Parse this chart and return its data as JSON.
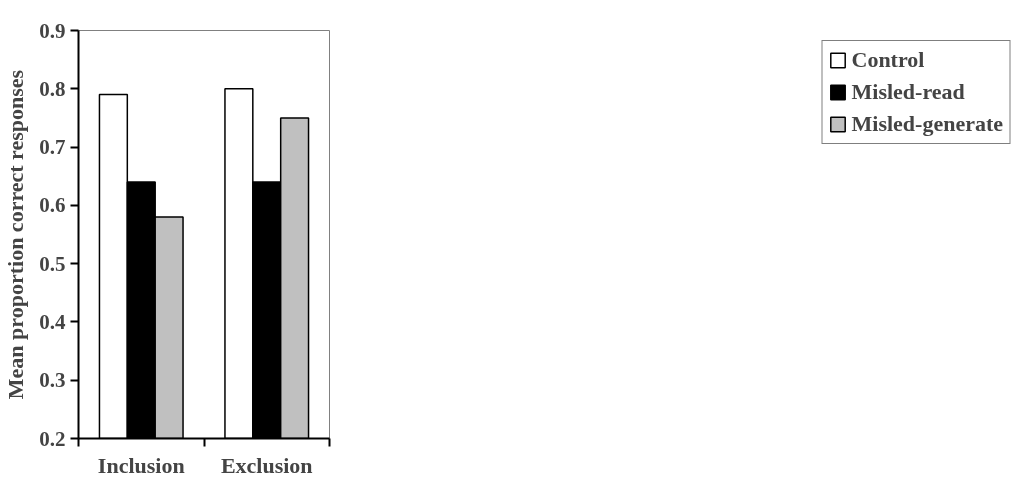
{
  "chart_data": {
    "type": "bar",
    "ylabel": "Mean proportion correct responses",
    "categories": [
      "Inclusion",
      "Exclusion"
    ],
    "series": [
      {
        "name": "Control",
        "color": "#ffffff",
        "values": [
          0.79,
          0.8
        ]
      },
      {
        "name": "Misled-read",
        "color": "#000000",
        "values": [
          0.64,
          0.64
        ]
      },
      {
        "name": "Misled-generate",
        "color": "#c0c0c0",
        "values": [
          0.58,
          0.75
        ]
      }
    ],
    "ylim": [
      0.2,
      0.9
    ],
    "yticks": [
      0.2,
      0.3,
      0.4,
      0.5,
      0.6,
      0.7,
      0.8,
      0.9
    ],
    "grid": false,
    "legend": "right"
  }
}
